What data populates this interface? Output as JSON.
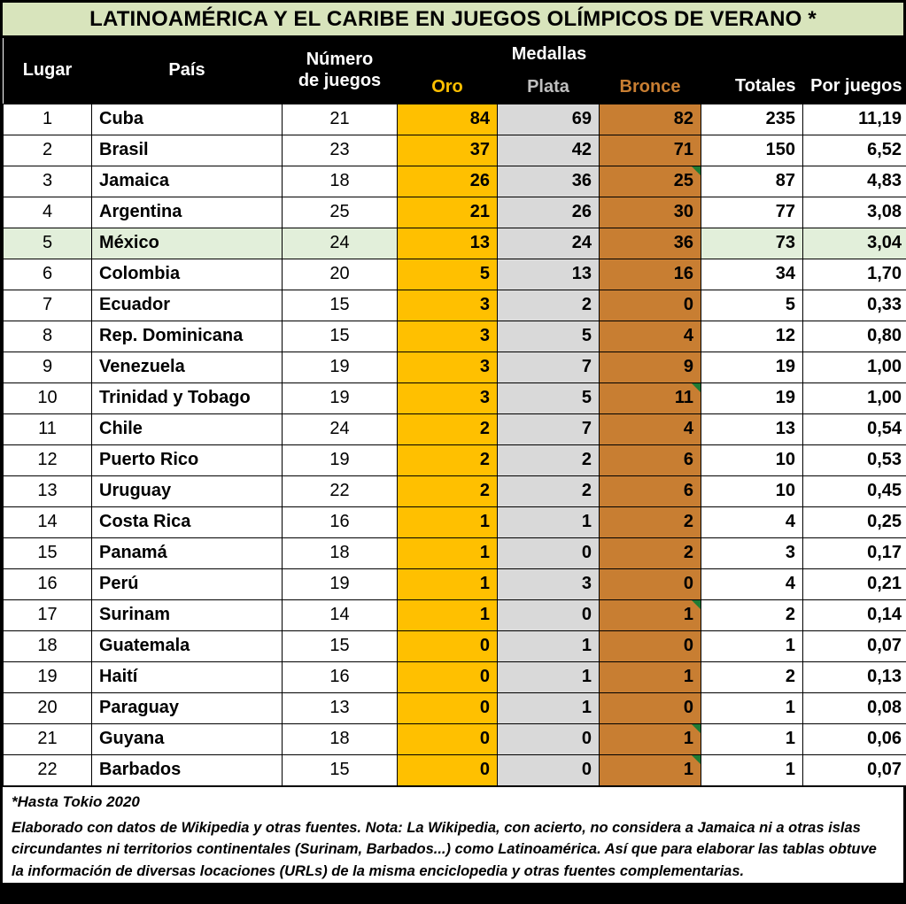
{
  "title": "LATINOAMÉRICA Y EL CARIBE EN JUEGOS OLÍMPICOS DE VERANO *",
  "header": {
    "lugar": "Lugar",
    "pais": "País",
    "numero_line1": "Número",
    "numero_line2": "de juegos",
    "medallas": "Medallas",
    "oro": "Oro",
    "plata": "Plata",
    "bronce": "Bronce",
    "totales": "Totales",
    "por_juegos": "Por juegos"
  },
  "chart_data": {
    "type": "table",
    "title": "LATINOAMÉRICA Y EL CARIBE EN JUEGOS OLÍMPICOS DE VERANO *",
    "columns": [
      "Lugar",
      "País",
      "Número de juegos",
      "Oro",
      "Plata",
      "Bronce",
      "Totales",
      "Por juegos"
    ],
    "rows": [
      [
        "1",
        "Cuba",
        "21",
        "84",
        "69",
        "82",
        "235",
        "11,19"
      ],
      [
        "2",
        "Brasil",
        "23",
        "37",
        "42",
        "71",
        "150",
        "6,52"
      ],
      [
        "3",
        "Jamaica",
        "18",
        "26",
        "36",
        "25",
        "87",
        "4,83"
      ],
      [
        "4",
        "Argentina",
        "25",
        "21",
        "26",
        "30",
        "77",
        "3,08"
      ],
      [
        "5",
        "México",
        "24",
        "13",
        "24",
        "36",
        "73",
        "3,04"
      ],
      [
        "6",
        "Colombia",
        "20",
        "5",
        "13",
        "16",
        "34",
        "1,70"
      ],
      [
        "7",
        "Ecuador",
        "15",
        "3",
        "2",
        "0",
        "5",
        "0,33"
      ],
      [
        "8",
        "Rep. Dominicana",
        "15",
        "3",
        "5",
        "4",
        "12",
        "0,80"
      ],
      [
        "9",
        "Venezuela",
        "19",
        "3",
        "7",
        "9",
        "19",
        "1,00"
      ],
      [
        "10",
        "Trinidad y Tobago",
        "19",
        "3",
        "5",
        "11",
        "19",
        "1,00"
      ],
      [
        "11",
        "Chile",
        "24",
        "2",
        "7",
        "4",
        "13",
        "0,54"
      ],
      [
        "12",
        "Puerto Rico",
        "19",
        "2",
        "2",
        "6",
        "10",
        "0,53"
      ],
      [
        "13",
        "Uruguay",
        "22",
        "2",
        "2",
        "6",
        "10",
        "0,45"
      ],
      [
        "14",
        "Costa Rica",
        "16",
        "1",
        "1",
        "2",
        "4",
        "0,25"
      ],
      [
        "15",
        "Panamá",
        "18",
        "1",
        "0",
        "2",
        "3",
        "0,17"
      ],
      [
        "16",
        "Perú",
        "19",
        "1",
        "3",
        "0",
        "4",
        "0,21"
      ],
      [
        "17",
        "Surinam",
        "14",
        "1",
        "0",
        "1",
        "2",
        "0,14"
      ],
      [
        "18",
        "Guatemala",
        "15",
        "0",
        "1",
        "0",
        "1",
        "0,07"
      ],
      [
        "19",
        "Haití",
        "16",
        "0",
        "1",
        "1",
        "2",
        "0,13"
      ],
      [
        "20",
        "Paraguay",
        "13",
        "0",
        "1",
        "0",
        "1",
        "0,08"
      ],
      [
        "21",
        "Guyana",
        "18",
        "0",
        "0",
        "1",
        "1",
        "0,06"
      ],
      [
        "22",
        "Barbados",
        "15",
        "0",
        "0",
        "1",
        "1",
        "0,07"
      ]
    ],
    "highlighted_row_index": 4,
    "comment_marker_rows": [
      2,
      9,
      16,
      20,
      21
    ],
    "comment_marker_column": "Bronce"
  },
  "footnotes": {
    "line1": "*Hasta Tokio 2020",
    "line2": "Elaborado con datos de Wikipedia y otras fuentes. Nota: La Wikipedia, con acierto, no considera a Jamaica ni a otras islas circundantes ni territorios continentales (Surinam, Barbados...) como Latinoamérica. Así que para elaborar las tablas obtuve la información de diversas locaciones (URLs) de la misma enciclopedia y otras fuentes complementarias."
  },
  "colors": {
    "title_bg": "#D8E4BC",
    "header_bg": "#000000",
    "gold": "#FFC000",
    "silver": "#D9D9D9",
    "silver_header_text": "#BFBFBF",
    "bronze": "#C87E32",
    "highlight": "#E2EFDA",
    "comment_green": "#1F7B34"
  }
}
